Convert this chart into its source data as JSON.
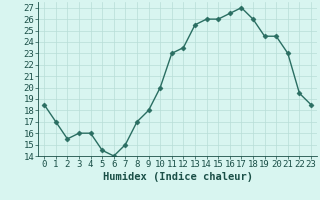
{
  "x": [
    0,
    1,
    2,
    3,
    4,
    5,
    6,
    7,
    8,
    9,
    10,
    11,
    12,
    13,
    14,
    15,
    16,
    17,
    18,
    19,
    20,
    21,
    22,
    23
  ],
  "y": [
    18.5,
    17.0,
    15.5,
    16.0,
    16.0,
    14.5,
    14.0,
    15.0,
    17.0,
    18.0,
    20.0,
    23.0,
    23.5,
    25.5,
    26.0,
    26.0,
    26.5,
    27.0,
    26.0,
    24.5,
    24.5,
    23.0,
    19.5,
    18.5
  ],
  "xlabel": "Humidex (Indice chaleur)",
  "xlim": [
    -0.5,
    23.5
  ],
  "ylim": [
    14,
    27.5
  ],
  "yticks": [
    14,
    15,
    16,
    17,
    18,
    19,
    20,
    21,
    22,
    23,
    24,
    25,
    26,
    27
  ],
  "xticks": [
    0,
    1,
    2,
    3,
    4,
    5,
    6,
    7,
    8,
    9,
    10,
    11,
    12,
    13,
    14,
    15,
    16,
    17,
    18,
    19,
    20,
    21,
    22,
    23
  ],
  "line_color": "#2a6e62",
  "marker": "D",
  "bg_color": "#d8f5f0",
  "grid_color": "#b8ddd7",
  "label_color": "#1a4f47",
  "tick_label_fontsize": 6.5,
  "xlabel_fontsize": 7.5,
  "linewidth": 1.0,
  "markersize": 2.5
}
